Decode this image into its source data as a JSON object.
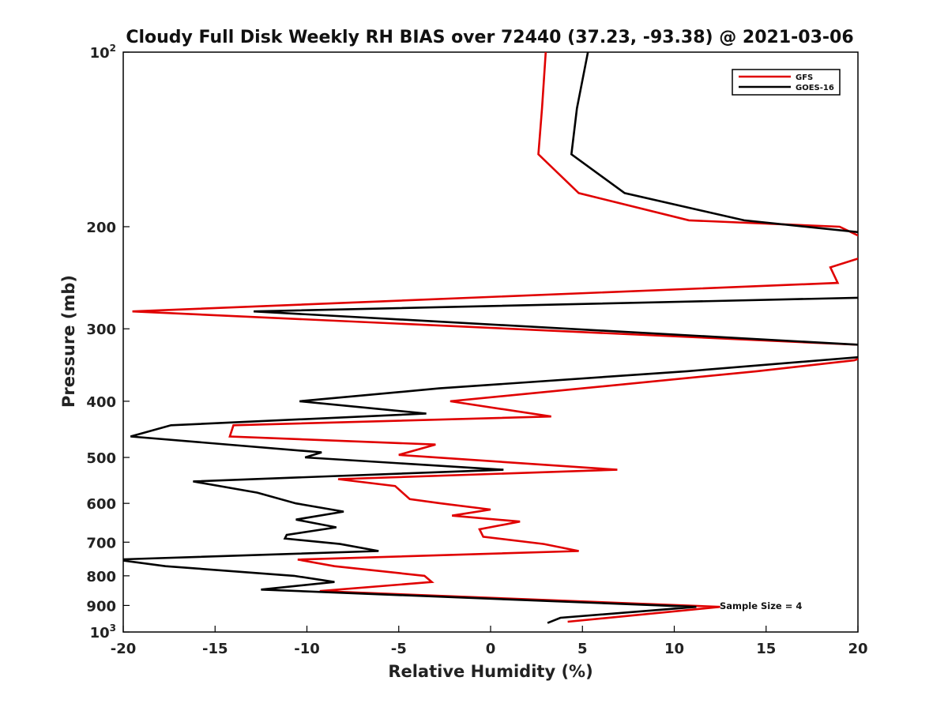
{
  "chart_data": {
    "type": "line",
    "title": "Cloudy Full Disk Weekly RH BIAS over 72440 (37.23, -93.38) @ 2021-03-06",
    "xlabel": "Relative Humidity (%)",
    "ylabel": "Pressure (mb)",
    "xlim": [
      -20,
      20
    ],
    "ylim": [
      100,
      1000
    ],
    "yscale": "log",
    "y_inverted": true,
    "grid": false,
    "legend_position": "top-right",
    "x_ticks": [
      "-20",
      "-15",
      "-10",
      "-5",
      "0",
      "5",
      "10",
      "15",
      "20"
    ],
    "y_ticks": [
      {
        "value": 100,
        "base": "10",
        "exp": "2"
      },
      {
        "value": 200,
        "label": "200"
      },
      {
        "value": 300,
        "label": "300"
      },
      {
        "value": 400,
        "label": "400"
      },
      {
        "value": 500,
        "label": "500"
      },
      {
        "value": 600,
        "label": "600"
      },
      {
        "value": 700,
        "label": "700"
      },
      {
        "value": 800,
        "label": "800"
      },
      {
        "value": 900,
        "label": "900"
      },
      {
        "value": 1000,
        "base": "10",
        "exp": "3"
      }
    ],
    "annotation": "Sample Size = 4",
    "series": [
      {
        "name": "GFS",
        "color": "#e00000",
        "points": [
          [
            3.0,
            100
          ],
          [
            2.8,
            125
          ],
          [
            2.6,
            150
          ],
          [
            4.8,
            175
          ],
          [
            10.8,
            195
          ],
          [
            19.0,
            200
          ],
          [
            20.4,
            210
          ],
          [
            null,
            null
          ],
          [
            20.4,
            225
          ],
          [
            18.5,
            235
          ],
          [
            18.9,
            250
          ],
          [
            -19.5,
            280
          ],
          [
            20.4,
            320
          ],
          [
            null,
            null
          ],
          [
            20.4,
            335
          ],
          [
            19.8,
            340
          ],
          [
            14.5,
            355
          ],
          [
            5.0,
            380
          ],
          [
            -2.2,
            400
          ],
          [
            3.3,
            425
          ],
          [
            -14.0,
            440
          ],
          [
            -14.2,
            460
          ],
          [
            -3.0,
            475
          ],
          [
            -5.0,
            495
          ],
          [
            6.9,
            525
          ],
          [
            -8.3,
            545
          ],
          [
            -5.2,
            560
          ],
          [
            -4.4,
            590
          ],
          [
            -2.7,
            600
          ],
          [
            0.0,
            615
          ],
          [
            -2.1,
            630
          ],
          [
            1.6,
            645
          ],
          [
            -0.6,
            665
          ],
          [
            -0.4,
            685
          ],
          [
            2.9,
            705
          ],
          [
            4.8,
            725
          ],
          [
            -10.5,
            750
          ],
          [
            -8.5,
            770
          ],
          [
            -3.6,
            800
          ],
          [
            -3.2,
            820
          ],
          [
            -9.3,
            850
          ],
          [
            12.5,
            905
          ],
          [
            4.2,
            960
          ]
        ]
      },
      {
        "name": "GOES-16",
        "color": "#000000",
        "points": [
          [
            5.3,
            100
          ],
          [
            4.7,
            125
          ],
          [
            4.4,
            150
          ],
          [
            7.3,
            175
          ],
          [
            13.8,
            195
          ],
          [
            20.4,
            205
          ],
          [
            null,
            null
          ],
          [
            20.4,
            265
          ],
          [
            -12.9,
            280
          ],
          [
            20.4,
            320
          ],
          [
            null,
            null
          ],
          [
            20.4,
            335
          ],
          [
            10.7,
            355
          ],
          [
            -2.8,
            380
          ],
          [
            -10.4,
            400
          ],
          [
            -3.5,
            420
          ],
          [
            -17.4,
            440
          ],
          [
            -19.6,
            460
          ],
          [
            -9.2,
            490
          ],
          [
            -10.1,
            500
          ],
          [
            0.7,
            525
          ],
          [
            -16.2,
            550
          ],
          [
            -12.7,
            575
          ],
          [
            -10.6,
            600
          ],
          [
            -8.0,
            620
          ],
          [
            -10.6,
            640
          ],
          [
            -8.4,
            660
          ],
          [
            -11.1,
            680
          ],
          [
            -11.2,
            690
          ],
          [
            -8.2,
            705
          ],
          [
            -6.1,
            725
          ],
          [
            -20.4,
            750
          ],
          [
            -17.7,
            770
          ],
          [
            -10.7,
            800
          ],
          [
            -8.5,
            820
          ],
          [
            -12.5,
            845
          ],
          [
            11.2,
            905
          ],
          [
            3.8,
            945
          ],
          [
            3.1,
            965
          ]
        ]
      }
    ]
  }
}
